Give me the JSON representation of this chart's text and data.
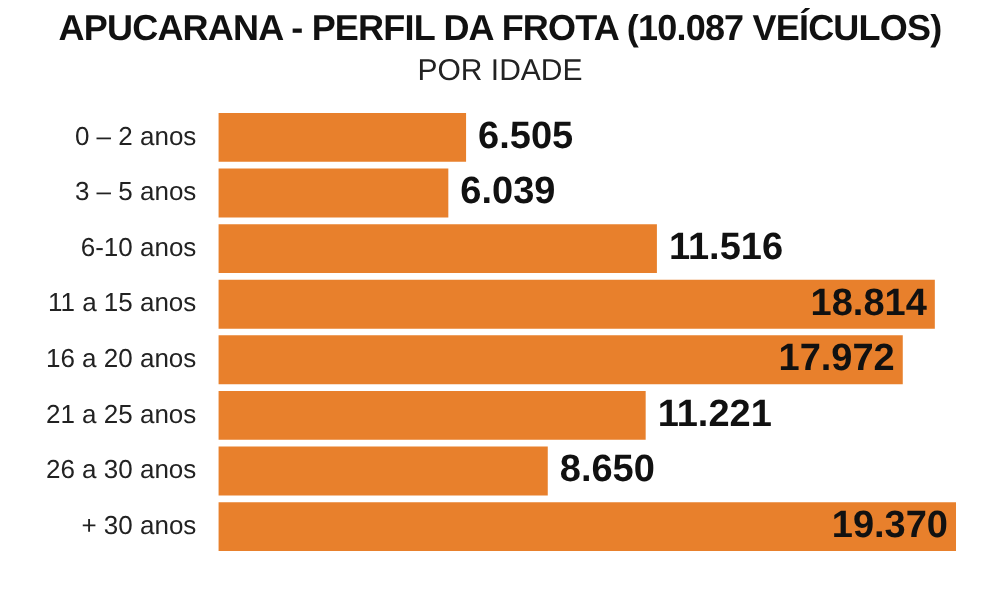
{
  "chart_data": {
    "type": "bar",
    "orientation": "horizontal",
    "title": "APUCARANA - PERFIL DA FROTA (10.087 VEÍCULOS)",
    "subtitle": "POR IDADE",
    "categories": [
      "0 – 2 anos",
      "3 – 5 anos",
      "6-10 anos",
      "11 a 15 anos",
      "16 a 20 anos",
      "21 a 25 anos",
      "26 a 30 anos",
      "+ 30 anos"
    ],
    "values": [
      6.505,
      6.039,
      11.516,
      18.814,
      17.972,
      11.221,
      8.65,
      19.37
    ],
    "value_labels": [
      "6.505",
      "6.039",
      "11.516",
      "18.814",
      "17.972",
      "11.221",
      "8.650",
      "19.370"
    ],
    "color": "#e8802c"
  }
}
